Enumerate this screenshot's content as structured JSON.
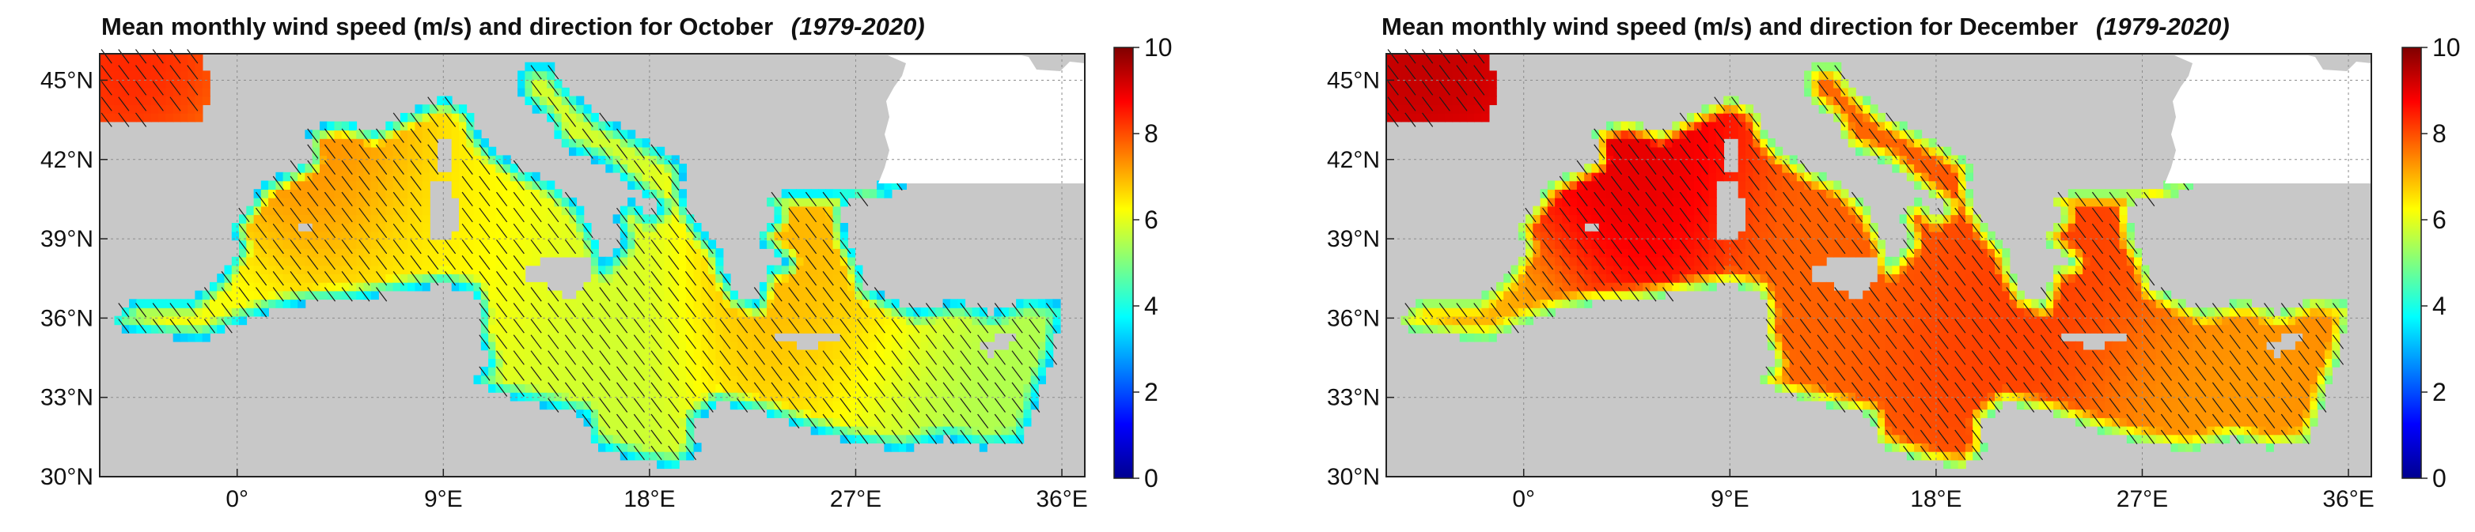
{
  "panels": [
    {
      "id": "october",
      "title": "Mean monthly wind speed (m/s) and direction for October",
      "period": "(1979-2020)",
      "field": {
        "hotspots": [
          {
            "lon": 3.5,
            "lat": 42.5,
            "speed": 7.6
          },
          {
            "lon": -4.5,
            "lat": 45.6,
            "speed": 8.8
          },
          {
            "lon": 25.0,
            "lat": 38.5,
            "speed": 7.2
          },
          {
            "lon": 25.5,
            "lat": 35.5,
            "speed": 7.0
          },
          {
            "lon": 10.0,
            "lat": 38.5,
            "speed": 6.5
          },
          {
            "lon": 15.0,
            "lat": 36.0,
            "speed": 5.8
          },
          {
            "lon": 30.0,
            "lat": 33.5,
            "speed": 5.4
          },
          {
            "lon": -3.0,
            "lat": 36.0,
            "speed": 6.2
          }
        ],
        "background_speed": 5.5,
        "edge_speed": 3.2
      }
    },
    {
      "id": "december",
      "title": "Mean monthly wind speed (m/s) and direction for December",
      "period": "(1979-2020)",
      "field": {
        "hotspots": [
          {
            "lon": 4.5,
            "lat": 42.0,
            "speed": 9.2
          },
          {
            "lon": -4.5,
            "lat": 45.6,
            "speed": 9.6
          },
          {
            "lon": 20.0,
            "lat": 36.0,
            "speed": 8.2
          },
          {
            "lon": 25.0,
            "lat": 38.5,
            "speed": 8.2
          },
          {
            "lon": 14.0,
            "lat": 38.5,
            "speed": 7.8
          },
          {
            "lon": 30.0,
            "lat": 34.0,
            "speed": 7.2
          },
          {
            "lon": -3.0,
            "lat": 36.0,
            "speed": 6.8
          }
        ],
        "background_speed": 7.6,
        "edge_speed": 4.8
      }
    }
  ],
  "axes": {
    "lon_range": [
      -6,
      37
    ],
    "lat_range": [
      30,
      46
    ],
    "lon_ticks": [
      {
        "value": 0,
        "label": "0°"
      },
      {
        "value": 9,
        "label": "9°E"
      },
      {
        "value": 18,
        "label": "18°E"
      },
      {
        "value": 27,
        "label": "27°E"
      },
      {
        "value": 36,
        "label": "36°E"
      }
    ],
    "lat_ticks": [
      {
        "value": 30,
        "label": "30°N"
      },
      {
        "value": 33,
        "label": "33°N"
      },
      {
        "value": 36,
        "label": "36°N"
      },
      {
        "value": 39,
        "label": "39°N"
      },
      {
        "value": 42,
        "label": "42°N"
      },
      {
        "value": 45,
        "label": "45°N"
      }
    ]
  },
  "colorbar": {
    "min": 0,
    "max": 10,
    "colormap": "jet",
    "ticks": [
      "0",
      "2",
      "4",
      "6",
      "8",
      "10"
    ]
  },
  "colors": {
    "land": "#c8c8c8",
    "grid": "#8c8c8c",
    "arrows": "#1a1a1a"
  }
}
